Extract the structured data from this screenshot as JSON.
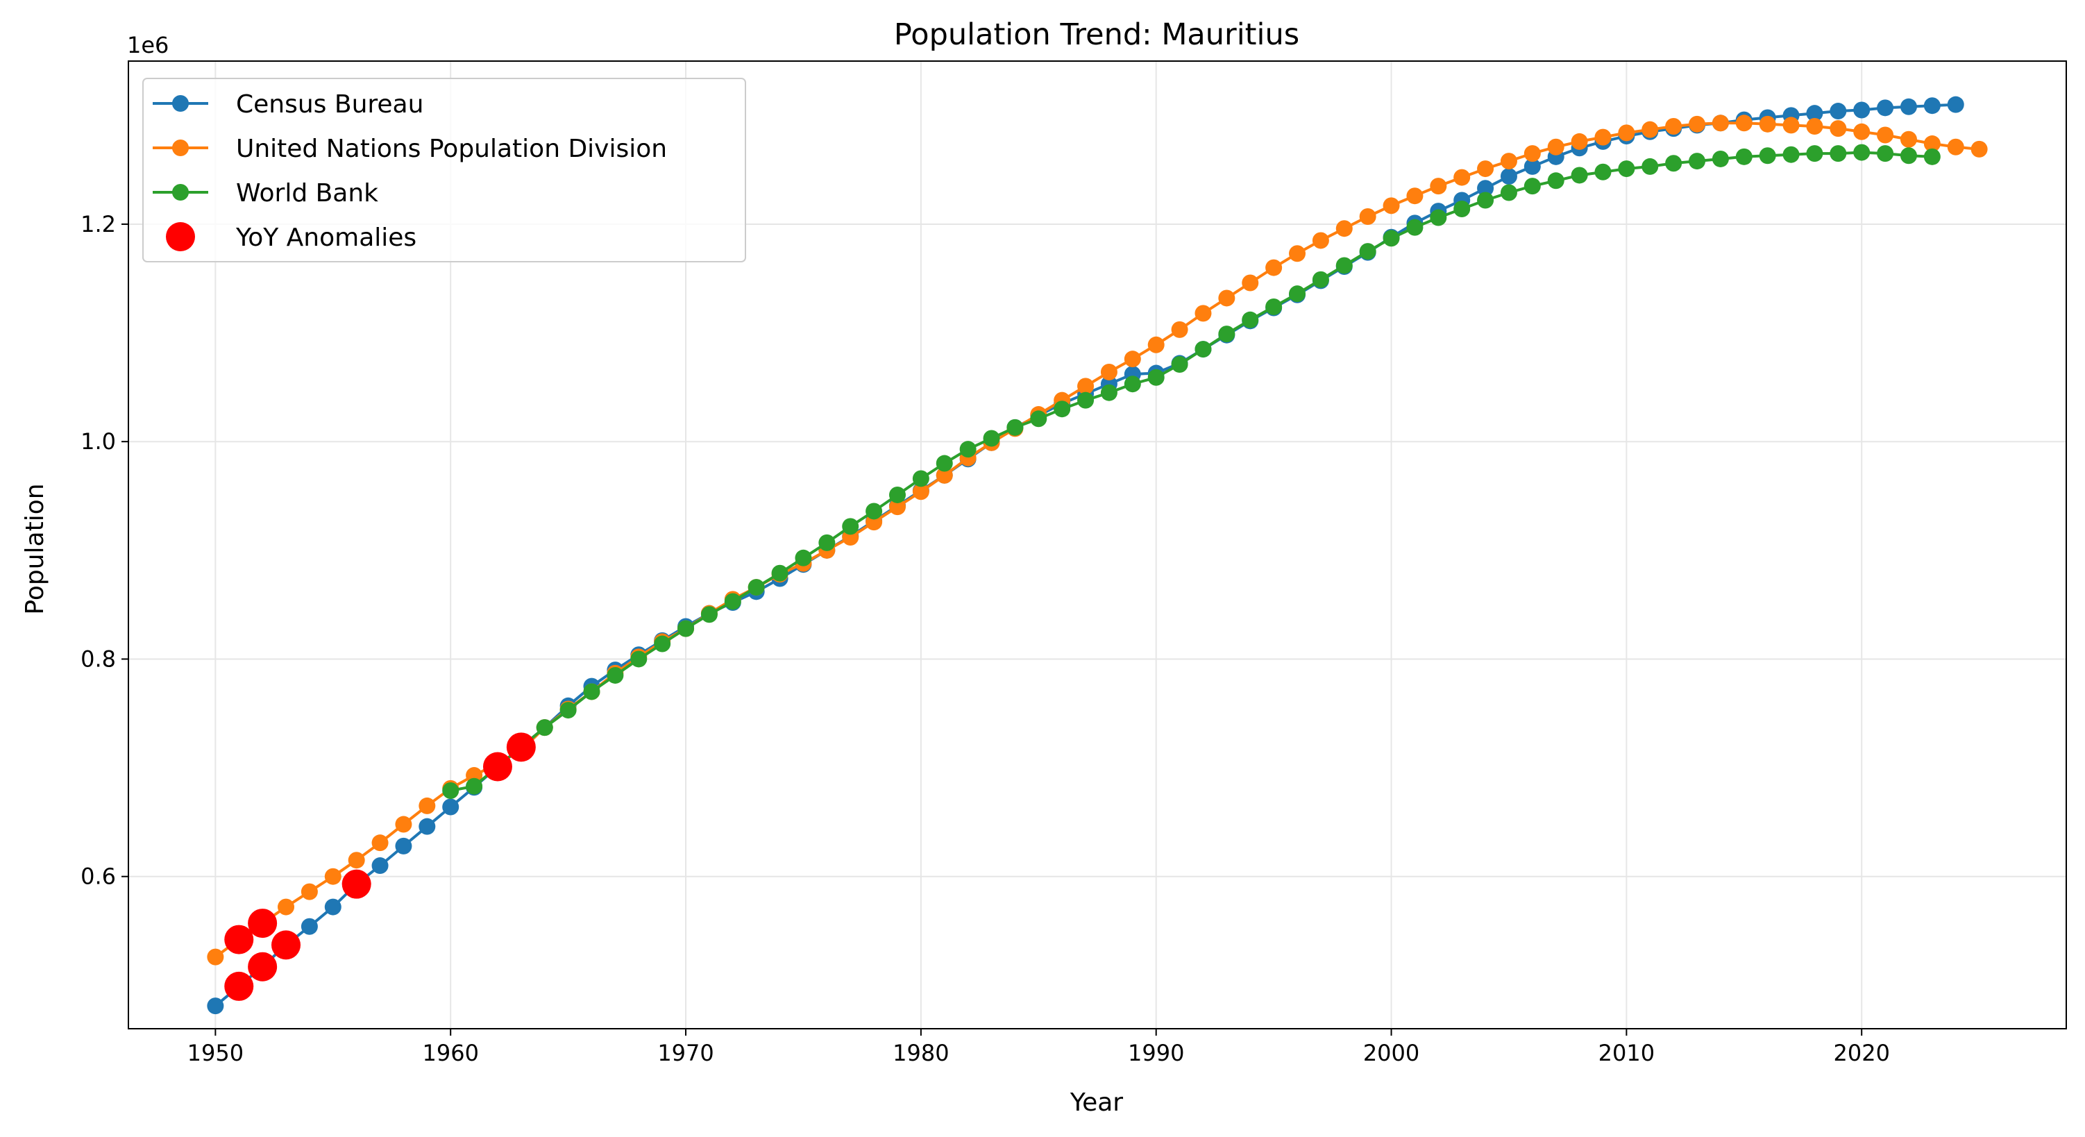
{
  "chart_data": {
    "type": "line",
    "title": "Population Trend: Mauritius",
    "xlabel": "Year",
    "ylabel": "Population",
    "y_offset_label": "1e6",
    "xlim": [
      1946.3,
      2028.7
    ],
    "ylim": [
      460000,
      1350000
    ],
    "x_ticks": [
      1950,
      1960,
      1970,
      1980,
      1990,
      2000,
      2010,
      2020
    ],
    "x_tick_labels": [
      "1950",
      "1960",
      "1970",
      "1980",
      "1990",
      "2000",
      "2010",
      "2020"
    ],
    "y_ticks": [
      600000,
      800000,
      1000000,
      1200000
    ],
    "y_tick_labels": [
      "0.6",
      "0.8",
      "1.0",
      "1.2"
    ],
    "grid": true,
    "legend_position": "top-left",
    "series": [
      {
        "name": "Census Bureau",
        "color": "#1f77b4",
        "x": [
          1950,
          1951,
          1952,
          1953,
          1954,
          1955,
          1956,
          1957,
          1958,
          1959,
          1960,
          1961,
          1962,
          1963,
          1964,
          1965,
          1966,
          1967,
          1968,
          1969,
          1970,
          1971,
          1972,
          1973,
          1974,
          1975,
          1976,
          1977,
          1978,
          1979,
          1980,
          1981,
          1982,
          1983,
          1984,
          1985,
          1986,
          1987,
          1988,
          1989,
          1990,
          1991,
          1992,
          1993,
          1994,
          1995,
          1996,
          1997,
          1998,
          1999,
          2000,
          2001,
          2002,
          2003,
          2004,
          2005,
          2006,
          2007,
          2008,
          2009,
          2010,
          2011,
          2012,
          2013,
          2014,
          2015,
          2016,
          2017,
          2018,
          2019,
          2020,
          2021,
          2022,
          2023,
          2024
        ],
        "values": [
          481000,
          499000,
          517000,
          537000,
          554000,
          572000,
          593000,
          610000,
          628000,
          646000,
          664000,
          682000,
          701000,
          719000,
          737000,
          757000,
          775000,
          790000,
          804000,
          817000,
          830000,
          842000,
          852000,
          862000,
          874000,
          887000,
          900000,
          913000,
          927000,
          941000,
          955000,
          969000,
          984000,
          999000,
          1013000,
          1024000,
          1035000,
          1044000,
          1053000,
          1062000,
          1063000,
          1072000,
          1085000,
          1098000,
          1111000,
          1123000,
          1135000,
          1148000,
          1161000,
          1174000,
          1188000,
          1201000,
          1212000,
          1222000,
          1233000,
          1244000,
          1253000,
          1262000,
          1270000,
          1276000,
          1281000,
          1285000,
          1288000,
          1291000,
          1293000,
          1296000,
          1298000,
          1300000,
          1302000,
          1304000,
          1305000,
          1307000,
          1308000,
          1309000,
          1310000
        ]
      },
      {
        "name": "United Nations Population Division",
        "color": "#ff7f0e",
        "x": [
          1950,
          1951,
          1952,
          1953,
          1954,
          1955,
          1956,
          1957,
          1958,
          1959,
          1960,
          1961,
          1962,
          1963,
          1964,
          1965,
          1966,
          1967,
          1968,
          1969,
          1970,
          1971,
          1972,
          1973,
          1974,
          1975,
          1976,
          1977,
          1978,
          1979,
          1980,
          1981,
          1982,
          1983,
          1984,
          1985,
          1986,
          1987,
          1988,
          1989,
          1990,
          1991,
          1992,
          1993,
          1994,
          1995,
          1996,
          1997,
          1998,
          1999,
          2000,
          2001,
          2002,
          2003,
          2004,
          2005,
          2006,
          2007,
          2008,
          2009,
          2010,
          2011,
          2012,
          2013,
          2014,
          2015,
          2016,
          2017,
          2018,
          2019,
          2020,
          2021,
          2022,
          2023,
          2024,
          2025
        ],
        "values": [
          526000,
          542000,
          557000,
          572000,
          586000,
          600000,
          615000,
          631000,
          648000,
          665000,
          681000,
          693000,
          704000,
          716000,
          737000,
          754000,
          770000,
          787000,
          802000,
          816000,
          828000,
          842000,
          855000,
          866000,
          878000,
          888000,
          900000,
          912000,
          926000,
          940000,
          954000,
          969000,
          985000,
          999000,
          1012000,
          1025000,
          1038000,
          1051000,
          1064000,
          1076000,
          1089000,
          1103000,
          1118000,
          1132000,
          1146000,
          1160000,
          1173000,
          1185000,
          1196000,
          1207000,
          1217000,
          1226000,
          1235000,
          1243000,
          1251000,
          1258000,
          1265000,
          1271000,
          1276000,
          1280000,
          1284000,
          1287000,
          1290000,
          1292000,
          1293000,
          1293000,
          1292000,
          1291000,
          1290000,
          1288000,
          1285000,
          1282000,
          1278000,
          1274000,
          1271000,
          1269000
        ]
      },
      {
        "name": "World Bank",
        "color": "#2ca02c",
        "x": [
          1960,
          1961,
          1962,
          1963,
          1964,
          1965,
          1966,
          1967,
          1968,
          1969,
          1970,
          1971,
          1972,
          1973,
          1974,
          1975,
          1976,
          1977,
          1978,
          1979,
          1980,
          1981,
          1982,
          1983,
          1984,
          1985,
          1986,
          1987,
          1988,
          1989,
          1990,
          1991,
          1992,
          1993,
          1994,
          1995,
          1996,
          1997,
          1998,
          1999,
          2000,
          2001,
          2002,
          2003,
          2004,
          2005,
          2006,
          2007,
          2008,
          2009,
          2010,
          2011,
          2012,
          2013,
          2014,
          2015,
          2016,
          2017,
          2018,
          2019,
          2020,
          2021,
          2022,
          2023
        ],
        "values": [
          679000,
          683000,
          701000,
          719000,
          737000,
          753000,
          770000,
          785000,
          800000,
          814000,
          828000,
          841000,
          853000,
          866000,
          879000,
          893000,
          907000,
          922000,
          936000,
          951000,
          966000,
          980000,
          993000,
          1003000,
          1013000,
          1021000,
          1030000,
          1038000,
          1045000,
          1053000,
          1059000,
          1071000,
          1085000,
          1099000,
          1112000,
          1124000,
          1136000,
          1149000,
          1162000,
          1175000,
          1187000,
          1197000,
          1206000,
          1214000,
          1222000,
          1229000,
          1235000,
          1240000,
          1245000,
          1248000,
          1251000,
          1253000,
          1256000,
          1258000,
          1260000,
          1262000,
          1263000,
          1264000,
          1265000,
          1265000,
          1266000,
          1265000,
          1263000,
          1262000
        ]
      }
    ],
    "anomalies": {
      "name": "YoY Anomalies",
      "color": "#ff0000",
      "points": [
        {
          "x": 1951,
          "y": 542000
        },
        {
          "x": 1951,
          "y": 499000
        },
        {
          "x": 1952,
          "y": 557000
        },
        {
          "x": 1952,
          "y": 517000
        },
        {
          "x": 1953,
          "y": 537000
        },
        {
          "x": 1956,
          "y": 593000
        },
        {
          "x": 1962,
          "y": 701000
        },
        {
          "x": 1963,
          "y": 719000
        }
      ]
    }
  }
}
